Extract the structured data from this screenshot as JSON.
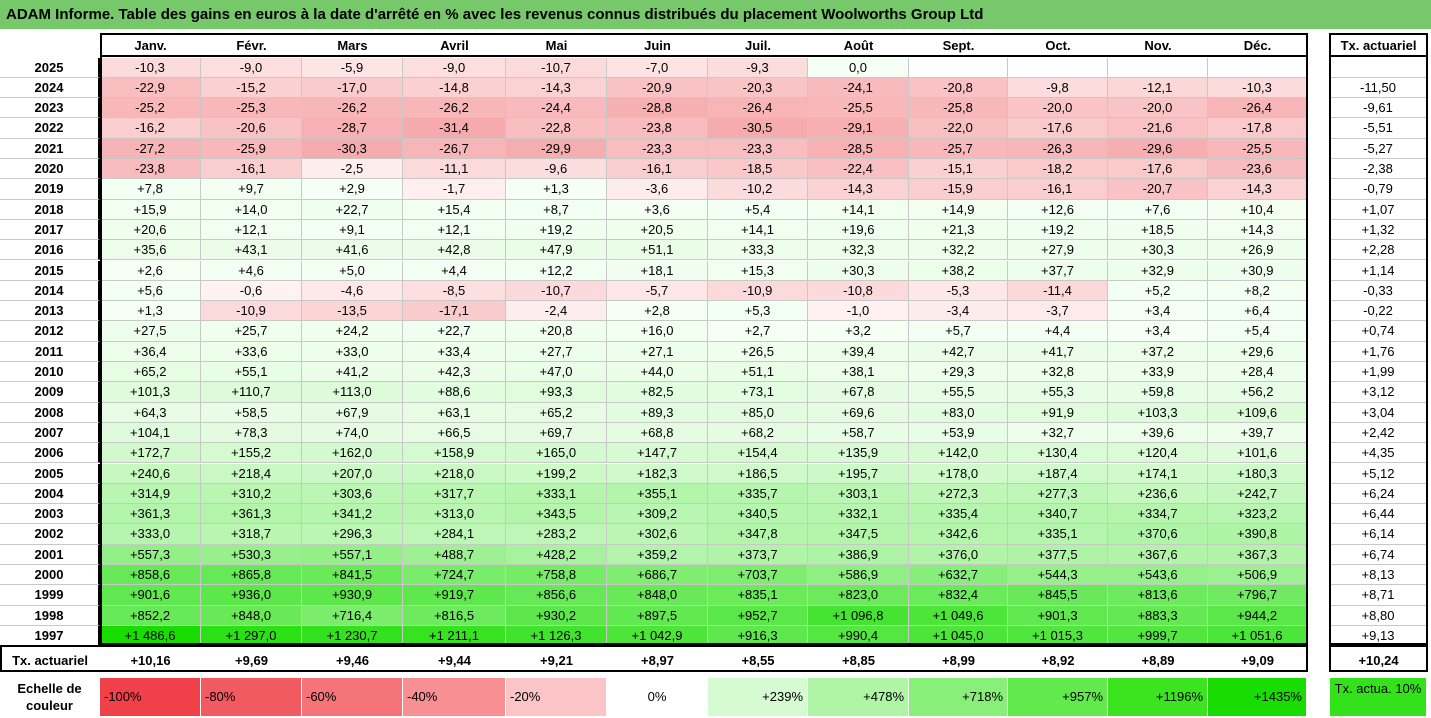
{
  "title": "ADAM Informe. Table des gains en euros à la date d'arrêté en % avec les revenus connus distribués du placement Woolworths Group Ltd",
  "chart_data": {
    "type": "table",
    "columns": [
      "Janv.",
      "Févr.",
      "Mars",
      "Avril",
      "Mai",
      "Juin",
      "Juil.",
      "Août",
      "Sept.",
      "Oct.",
      "Nov.",
      "Déc."
    ],
    "rate_header": "Tx. actuariel",
    "rows": [
      {
        "year": "2025",
        "values": [
          "-10,3",
          "-9,0",
          "-5,9",
          "-9,0",
          "-10,7",
          "-7,0",
          "-9,3",
          "0,0",
          "",
          "",
          "",
          ""
        ],
        "rate": ""
      },
      {
        "year": "2024",
        "values": [
          "-22,9",
          "-15,2",
          "-17,0",
          "-14,8",
          "-14,3",
          "-20,9",
          "-20,3",
          "-24,1",
          "-20,8",
          "-9,8",
          "-12,1",
          "-10,3"
        ],
        "rate": "-11,50"
      },
      {
        "year": "2023",
        "values": [
          "-25,2",
          "-25,3",
          "-26,2",
          "-26,2",
          "-24,4",
          "-28,8",
          "-26,4",
          "-25,5",
          "-25,8",
          "-20,0",
          "-20,0",
          "-26,4"
        ],
        "rate": "-9,61"
      },
      {
        "year": "2022",
        "values": [
          "-16,2",
          "-20,6",
          "-28,7",
          "-31,4",
          "-22,8",
          "-23,8",
          "-30,5",
          "-29,1",
          "-22,0",
          "-17,6",
          "-21,6",
          "-17,8"
        ],
        "rate": "-5,51"
      },
      {
        "year": "2021",
        "values": [
          "-27,2",
          "-25,9",
          "-30,3",
          "-26,7",
          "-29,9",
          "-23,3",
          "-23,3",
          "-28,5",
          "-25,7",
          "-26,3",
          "-29,6",
          "-25,5"
        ],
        "rate": "-5,27"
      },
      {
        "year": "2020",
        "values": [
          "-23,8",
          "-16,1",
          "-2,5",
          "-11,1",
          "-9,6",
          "-16,1",
          "-18,5",
          "-22,4",
          "-15,1",
          "-18,2",
          "-17,6",
          "-23,6"
        ],
        "rate": "-2,38"
      },
      {
        "year": "2019",
        "values": [
          "+7,8",
          "+9,7",
          "+2,9",
          "-1,7",
          "+1,3",
          "-3,6",
          "-10,2",
          "-14,3",
          "-15,9",
          "-16,1",
          "-20,7",
          "-14,3"
        ],
        "rate": "-0,79"
      },
      {
        "year": "2018",
        "values": [
          "+15,9",
          "+14,0",
          "+22,7",
          "+15,4",
          "+8,7",
          "+3,6",
          "+5,4",
          "+14,1",
          "+14,9",
          "+12,6",
          "+7,6",
          "+10,4"
        ],
        "rate": "+1,07"
      },
      {
        "year": "2017",
        "values": [
          "+20,6",
          "+12,1",
          "+9,1",
          "+12,1",
          "+19,2",
          "+20,5",
          "+14,1",
          "+19,6",
          "+21,3",
          "+19,2",
          "+18,5",
          "+14,3"
        ],
        "rate": "+1,32"
      },
      {
        "year": "2016",
        "values": [
          "+35,6",
          "+43,1",
          "+41,6",
          "+42,8",
          "+47,9",
          "+51,1",
          "+33,3",
          "+32,3",
          "+32,2",
          "+27,9",
          "+30,3",
          "+26,9"
        ],
        "rate": "+2,28"
      },
      {
        "year": "2015",
        "values": [
          "+2,6",
          "+4,6",
          "+5,0",
          "+4,4",
          "+12,2",
          "+18,1",
          "+15,3",
          "+30,3",
          "+38,2",
          "+37,7",
          "+32,9",
          "+30,9"
        ],
        "rate": "+1,14"
      },
      {
        "year": "2014",
        "values": [
          "+5,6",
          "-0,6",
          "-4,6",
          "-8,5",
          "-10,7",
          "-5,7",
          "-10,9",
          "-10,8",
          "-5,3",
          "-11,4",
          "+5,2",
          "+8,2"
        ],
        "rate": "-0,33"
      },
      {
        "year": "2013",
        "values": [
          "+1,3",
          "-10,9",
          "-13,5",
          "-17,1",
          "-2,4",
          "+2,8",
          "+5,3",
          "-1,0",
          "-3,4",
          "-3,7",
          "+3,4",
          "+6,4"
        ],
        "rate": "-0,22"
      },
      {
        "year": "2012",
        "values": [
          "+27,5",
          "+25,7",
          "+24,2",
          "+22,7",
          "+20,8",
          "+16,0",
          "+2,7",
          "+3,2",
          "+5,7",
          "+4,4",
          "+3,4",
          "+5,4"
        ],
        "rate": "+0,74"
      },
      {
        "year": "2011",
        "values": [
          "+36,4",
          "+33,6",
          "+33,0",
          "+33,4",
          "+27,7",
          "+27,1",
          "+26,5",
          "+39,4",
          "+42,7",
          "+41,7",
          "+37,2",
          "+29,6"
        ],
        "rate": "+1,76"
      },
      {
        "year": "2010",
        "values": [
          "+65,2",
          "+55,1",
          "+41,2",
          "+42,3",
          "+47,0",
          "+44,0",
          "+51,1",
          "+38,1",
          "+29,3",
          "+32,8",
          "+33,9",
          "+28,4"
        ],
        "rate": "+1,99"
      },
      {
        "year": "2009",
        "values": [
          "+101,3",
          "+110,7",
          "+113,0",
          "+88,6",
          "+93,3",
          "+82,5",
          "+73,1",
          "+67,8",
          "+55,5",
          "+55,3",
          "+59,8",
          "+56,2"
        ],
        "rate": "+3,12"
      },
      {
        "year": "2008",
        "values": [
          "+64,3",
          "+58,5",
          "+67,9",
          "+63,1",
          "+65,2",
          "+89,3",
          "+85,0",
          "+69,6",
          "+83,0",
          "+91,9",
          "+103,3",
          "+109,6"
        ],
        "rate": "+3,04"
      },
      {
        "year": "2007",
        "values": [
          "+104,1",
          "+78,3",
          "+74,0",
          "+66,5",
          "+69,7",
          "+68,8",
          "+68,2",
          "+58,7",
          "+53,9",
          "+32,7",
          "+39,6",
          "+39,7"
        ],
        "rate": "+2,42"
      },
      {
        "year": "2006",
        "values": [
          "+172,7",
          "+155,2",
          "+162,0",
          "+158,9",
          "+165,0",
          "+147,7",
          "+154,4",
          "+135,9",
          "+142,0",
          "+130,4",
          "+120,4",
          "+101,6"
        ],
        "rate": "+4,35"
      },
      {
        "year": "2005",
        "values": [
          "+240,6",
          "+218,4",
          "+207,0",
          "+218,0",
          "+199,2",
          "+182,3",
          "+186,5",
          "+195,7",
          "+178,0",
          "+187,4",
          "+174,1",
          "+180,3"
        ],
        "rate": "+5,12"
      },
      {
        "year": "2004",
        "values": [
          "+314,9",
          "+310,2",
          "+303,6",
          "+317,7",
          "+333,1",
          "+355,1",
          "+335,7",
          "+303,1",
          "+272,3",
          "+277,3",
          "+236,6",
          "+242,7"
        ],
        "rate": "+6,24"
      },
      {
        "year": "2003",
        "values": [
          "+361,3",
          "+361,3",
          "+341,2",
          "+313,0",
          "+343,5",
          "+309,2",
          "+340,5",
          "+332,1",
          "+335,4",
          "+340,7",
          "+334,7",
          "+323,2"
        ],
        "rate": "+6,44"
      },
      {
        "year": "2002",
        "values": [
          "+333,0",
          "+318,7",
          "+296,3",
          "+284,1",
          "+283,2",
          "+302,6",
          "+347,8",
          "+347,5",
          "+342,6",
          "+335,1",
          "+370,6",
          "+390,8"
        ],
        "rate": "+6,14"
      },
      {
        "year": "2001",
        "values": [
          "+557,3",
          "+530,3",
          "+557,1",
          "+488,7",
          "+428,2",
          "+359,2",
          "+373,7",
          "+386,9",
          "+376,0",
          "+377,5",
          "+367,6",
          "+367,3"
        ],
        "rate": "+6,74"
      },
      {
        "year": "2000",
        "values": [
          "+858,6",
          "+865,8",
          "+841,5",
          "+724,7",
          "+758,8",
          "+686,7",
          "+703,7",
          "+586,9",
          "+632,7",
          "+544,3",
          "+543,6",
          "+506,9"
        ],
        "rate": "+8,13"
      },
      {
        "year": "1999",
        "values": [
          "+901,6",
          "+936,0",
          "+930,9",
          "+919,7",
          "+856,6",
          "+848,0",
          "+835,1",
          "+823,0",
          "+832,4",
          "+845,5",
          "+813,6",
          "+796,7"
        ],
        "rate": "+8,71"
      },
      {
        "year": "1998",
        "values": [
          "+852,2",
          "+848,0",
          "+716,4",
          "+816,5",
          "+930,2",
          "+897,5",
          "+952,7",
          "+1 096,8",
          "+1 049,6",
          "+901,3",
          "+883,3",
          "+944,2"
        ],
        "rate": "+8,80"
      },
      {
        "year": "1997",
        "values": [
          "+1 486,6",
          "+1 297,0",
          "+1 230,7",
          "+1 211,1",
          "+1 126,3",
          "+1 042,9",
          "+916,3",
          "+990,4",
          "+1 045,0",
          "+1 015,3",
          "+999,7",
          "+1 051,6"
        ],
        "rate": "+9,13"
      }
    ],
    "footer": {
      "label": "Tx. actuariel",
      "values": [
        "+10,16",
        "+9,69",
        "+9,46",
        "+9,44",
        "+9,21",
        "+8,97",
        "+8,55",
        "+8,85",
        "+8,99",
        "+8,92",
        "+8,89",
        "+9,09"
      ],
      "rate": "+10,24"
    },
    "color_scale": {
      "label": "Echelle de couleur",
      "stops": [
        {
          "text": "-100%",
          "color": "#f0404a",
          "align": "left"
        },
        {
          "text": "-80%",
          "color": "#f25a62",
          "align": "left"
        },
        {
          "text": "-60%",
          "color": "#f4747a",
          "align": "left"
        },
        {
          "text": "-40%",
          "color": "#f78f93",
          "align": "left"
        },
        {
          "text": "-20%",
          "color": "#fbc5c7",
          "align": "left"
        },
        {
          "text": "0%",
          "color": "#ffffff",
          "align": "center"
        },
        {
          "text": "+239%",
          "color": "#d6fad1",
          "align": "right"
        },
        {
          "text": "+478%",
          "color": "#aff5a5",
          "align": "right"
        },
        {
          "text": "+718%",
          "color": "#88ef78",
          "align": "right"
        },
        {
          "text": "+957%",
          "color": "#62ea4c",
          "align": "right"
        },
        {
          "text": "+1196%",
          "color": "#3be41f",
          "align": "right"
        },
        {
          "text": "+1435%",
          "color": "#19dd00",
          "align": "right"
        }
      ],
      "rate_label": "Tx. actua. 10%",
      "rate_color": "#33e21a"
    }
  }
}
